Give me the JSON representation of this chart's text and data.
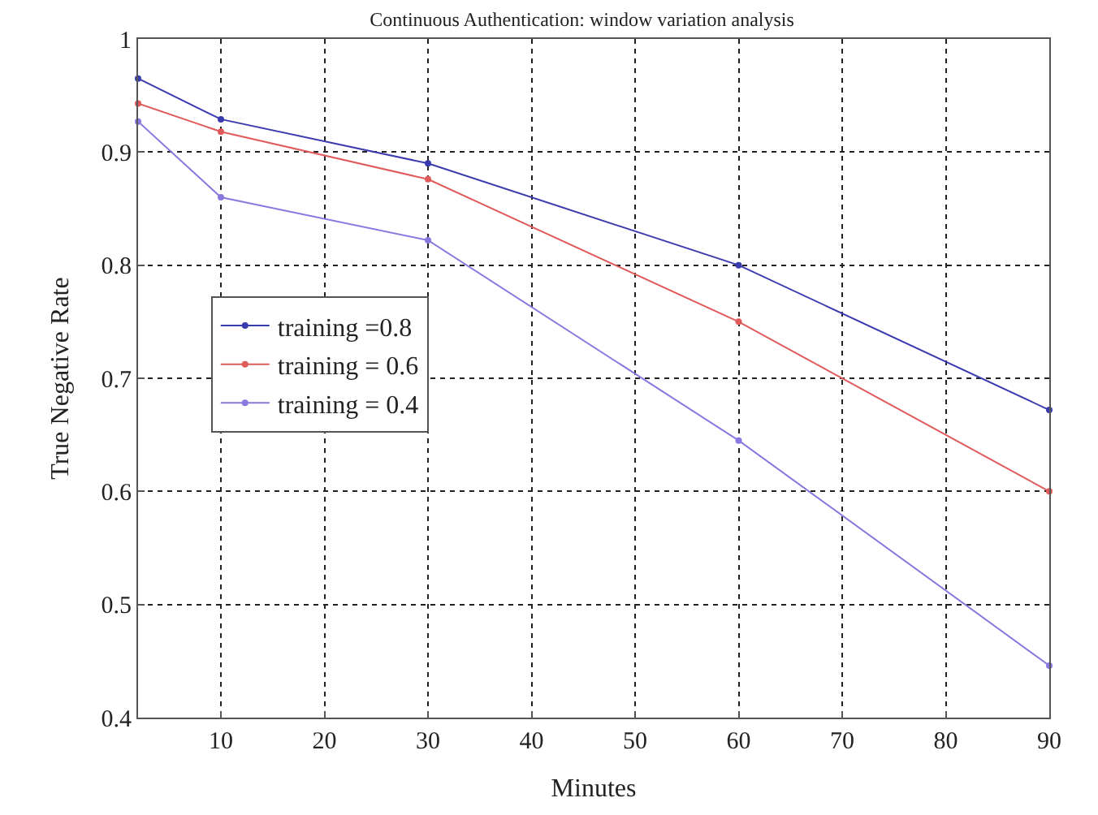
{
  "chart_data": {
    "type": "line",
    "title": "Continuous Authentication: window variation analysis",
    "xlabel": "Minutes",
    "ylabel": "True Negative Rate",
    "x": [
      2,
      10,
      30,
      60,
      90
    ],
    "series": [
      {
        "name": "training =0.8",
        "color": "#3b3bb0",
        "values": [
          0.965,
          0.929,
          0.89,
          0.8,
          0.672
        ]
      },
      {
        "name": "training = 0.6",
        "color": "#e05a5a",
        "values": [
          0.943,
          0.918,
          0.876,
          0.75,
          0.6
        ]
      },
      {
        "name": "training = 0.4",
        "color": "#8878e0",
        "values": [
          0.927,
          0.86,
          0.822,
          0.645,
          0.446
        ]
      }
    ],
    "xlim": [
      2,
      90
    ],
    "xticks": [
      10,
      20,
      30,
      40,
      50,
      60,
      70,
      80,
      90
    ],
    "ylim": [
      0.4,
      1
    ],
    "yticks": [
      0.4,
      0.5,
      0.6,
      0.7,
      0.8,
      0.9,
      {
        "value": 1,
        "label": "1"
      }
    ],
    "grid": true,
    "legend": "left",
    "marker": "circle",
    "line_style": "solid"
  }
}
